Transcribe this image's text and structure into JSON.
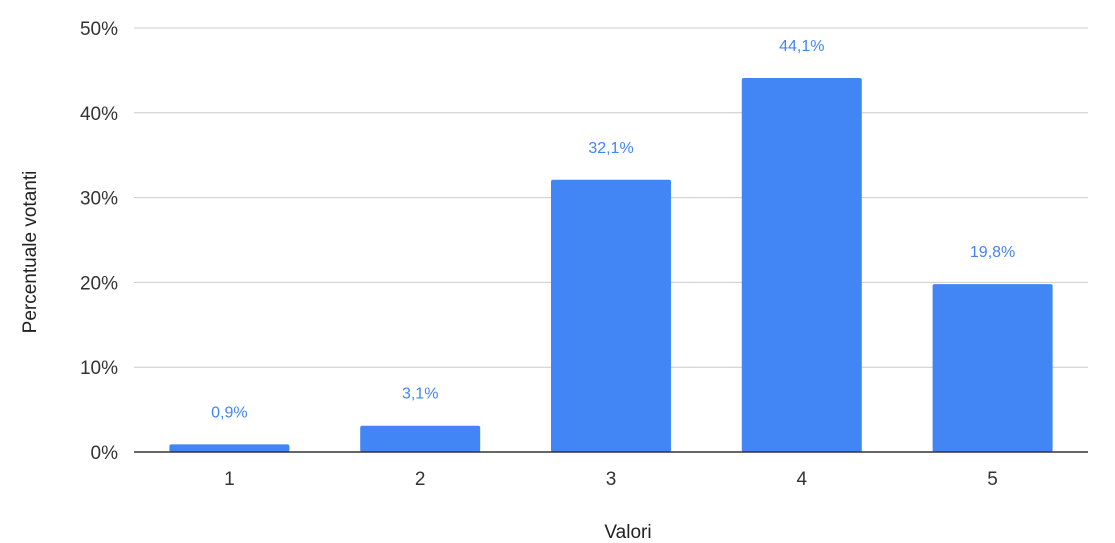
{
  "chart_data": {
    "type": "bar",
    "title": "",
    "xlabel": "Valori",
    "ylabel": "Percentuale votanti",
    "categories": [
      "1",
      "2",
      "3",
      "4",
      "5"
    ],
    "values": [
      0.9,
      3.1,
      32.1,
      44.1,
      19.8
    ],
    "data_labels": [
      "0,9%",
      "3,1%",
      "32,1%",
      "44,1%",
      "19,8%"
    ],
    "ylim": [
      0,
      50
    ],
    "yticks": [
      0,
      10,
      20,
      30,
      40,
      50
    ],
    "ytick_labels": [
      "0%",
      "10%",
      "20%",
      "30%",
      "40%",
      "50%"
    ],
    "grid": true,
    "legend": "none",
    "colors": {
      "bar": "#4285f4",
      "data_label": "#4285f4",
      "grid": "#cccccc",
      "axis": "#333333"
    }
  }
}
